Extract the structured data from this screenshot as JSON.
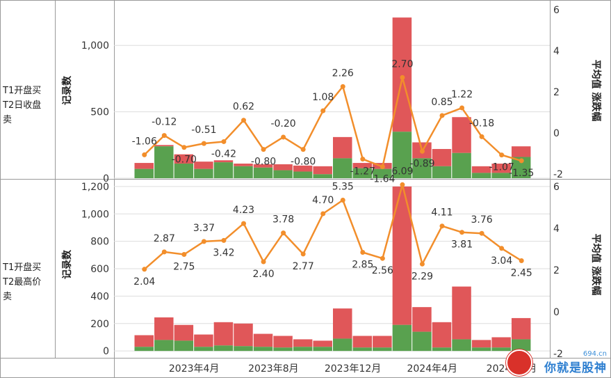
{
  "row_labels": [
    "T1开盘买\nT2日收盘\n卖",
    "T1开盘买\nT2最高价\n卖"
  ],
  "x_tick_labels": [
    "2023年4月",
    "2023年8月",
    "2023年12月",
    "2024年4月",
    "2024年8月"
  ],
  "watermark": {
    "domain": "694.cn",
    "text": "你就是股神"
  },
  "colors": {
    "red": "#e05759",
    "green": "#59a14f",
    "line": "#f28e2b",
    "grid": "#dddddd",
    "border": "#999999"
  },
  "chart_data": [
    {
      "type": "bar",
      "y_left_label": "记录数",
      "y_right_label": "平均值 涨跌幅",
      "ylim_left": [
        0,
        1300
      ],
      "yticks_left": [
        0,
        500,
        1000
      ],
      "ytick_labels_left": [
        "0",
        "500",
        "1,000"
      ],
      "ylim_right": [
        -2.2,
        6.2
      ],
      "yticks_right": [
        -2,
        0,
        2,
        4,
        6
      ],
      "ytick_labels_right": [
        "-2",
        "0",
        "2",
        "4",
        "6"
      ],
      "x_ticks": [
        {
          "label": "2023年4月",
          "at": 3
        },
        {
          "label": "2023年8月",
          "at": 7
        },
        {
          "label": "2023年12月",
          "at": 11
        },
        {
          "label": "2024年4月",
          "at": 15
        },
        {
          "label": "2024年8月",
          "at": 19
        }
      ],
      "series": [
        {
          "name": "green",
          "values": [
            70,
            240,
            110,
            70,
            120,
            90,
            80,
            60,
            50,
            30,
            150,
            75,
            70,
            350,
            150,
            90,
            190,
            40,
            40,
            160
          ]
        },
        {
          "name": "red",
          "values": [
            45,
            10,
            70,
            55,
            15,
            20,
            25,
            45,
            45,
            60,
            160,
            40,
            45,
            860,
            120,
            130,
            270,
            50,
            70,
            80
          ]
        }
      ],
      "line_values": [
        -1.06,
        -0.12,
        -0.7,
        -0.51,
        -0.42,
        0.62,
        -0.8,
        -0.2,
        -0.8,
        1.08,
        2.26,
        -1.27,
        -1.64,
        2.7,
        -0.89,
        0.85,
        1.22,
        -0.18,
        -1.07,
        -1.35
      ],
      "line_labels": [
        "-1.06",
        "-0.12",
        "-0.70",
        "-0.51",
        "-0.42",
        "0.62",
        "-0.80",
        "-0.20",
        "-0.80",
        "1.08",
        "2.26",
        "-1.27",
        "-1.64",
        "2.70",
        "-0.89",
        "0.85",
        "1.22",
        "-0.18",
        "-1.07",
        "-1.35"
      ]
    },
    {
      "type": "bar",
      "y_left_label": "记录数",
      "y_right_label": "平均值 涨跌幅",
      "ylim_left": [
        -50,
        1230
      ],
      "yticks_left": [
        0,
        200,
        400,
        600,
        800,
        1000,
        1200
      ],
      "ytick_labels_left": [
        "0",
        "200",
        "400",
        "600",
        "800",
        "1,000",
        "1,200"
      ],
      "ylim_right": [
        -2.2,
        6.2
      ],
      "yticks_right": [
        -2,
        0,
        2,
        4,
        6
      ],
      "ytick_labels_right": [
        "-2",
        "0",
        "2",
        "4",
        "6"
      ],
      "x_ticks": [
        {
          "label": "2023年4月",
          "at": 3
        },
        {
          "label": "2023年8月",
          "at": 7
        },
        {
          "label": "2023年12月",
          "at": 11
        },
        {
          "label": "2024年4月",
          "at": 15
        },
        {
          "label": "2024年8月",
          "at": 19
        }
      ],
      "series": [
        {
          "name": "green",
          "values": [
            30,
            80,
            75,
            30,
            40,
            35,
            30,
            25,
            30,
            30,
            90,
            25,
            25,
            190,
            140,
            25,
            85,
            25,
            25,
            85
          ]
        },
        {
          "name": "red",
          "values": [
            85,
            165,
            115,
            90,
            170,
            165,
            95,
            85,
            55,
            45,
            220,
            85,
            85,
            1010,
            180,
            185,
            385,
            55,
            75,
            155
          ]
        }
      ],
      "line_values": [
        2.04,
        2.87,
        2.75,
        3.37,
        3.42,
        4.23,
        2.4,
        3.78,
        2.77,
        4.7,
        5.35,
        2.85,
        2.56,
        6.09,
        2.29,
        4.11,
        3.81,
        3.76,
        3.04,
        2.45
      ],
      "line_labels": [
        "2.04",
        "2.87",
        "2.75",
        "3.37",
        "3.42",
        "4.23",
        "2.40",
        "3.78",
        "2.77",
        "4.70",
        "5.35",
        "2.85",
        "2.56",
        "6.09",
        "2.29",
        "4.11",
        "3.81",
        "3.76",
        "3.04",
        "2.45"
      ]
    }
  ]
}
